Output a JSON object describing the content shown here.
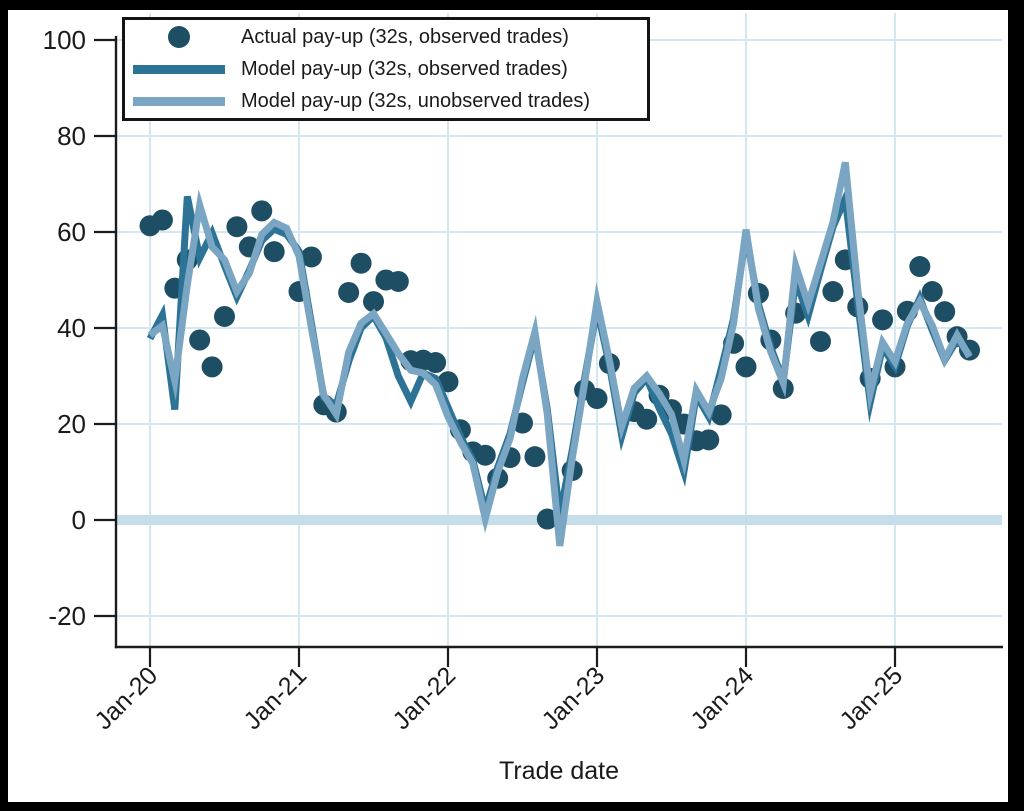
{
  "chart": {
    "x_axis_title": "Trade date",
    "y_tick_labels": [
      "100",
      "80",
      "60",
      "40",
      "20",
      "0",
      "-20"
    ],
    "y_tick_values": [
      100,
      80,
      60,
      40,
      20,
      0,
      -20
    ],
    "x_tick_labels": [
      "Jan-20",
      "Jan-21",
      "Jan-22",
      "Jan-23",
      "Jan-24",
      "Jan-25"
    ],
    "colors": {
      "actual_dot": "#1e4e63",
      "model_observed_line": "#2c7396",
      "model_unobserved_line": "#7aa6c3",
      "gridline": "#d5e8f2",
      "zero_band": "#c5dee9",
      "axis": "#1c1c1c",
      "text": "#1a1a1a",
      "frame": "#000000",
      "panel": "#ffffff"
    }
  },
  "legend": {
    "items": [
      {
        "marker": "dot",
        "color": "#1e4e63",
        "label": "Actual pay-up (32s, observed trades)"
      },
      {
        "marker": "line",
        "color": "#2c7396",
        "label": "Model pay-up (32s, observed trades)"
      },
      {
        "marker": "line",
        "color": "#7aa6c3",
        "label": "Model pay-up (32s, unobserved trades)"
      }
    ]
  },
  "chart_data": {
    "type": "line",
    "title": "",
    "xlabel": "Trade date",
    "ylabel": "",
    "ylim": [
      -20,
      100
    ],
    "y_gridlines": [
      100,
      80,
      60,
      40,
      20,
      -20
    ],
    "zero_reference_band": 0,
    "x_unit": "monthly trade dates",
    "x_tick_labels": [
      "Jan-20",
      "Jan-21",
      "Jan-22",
      "Jan-23",
      "Jan-24",
      "Jan-25"
    ],
    "legend_position": "top-left inside",
    "grid": true,
    "series": [
      {
        "name": "Actual pay-up (32s, observed trades)",
        "type": "scatter",
        "color": "#1e4e63",
        "points": [
          [
            "Jan-20",
            61.3
          ],
          [
            "Feb-20",
            62.5
          ],
          [
            "Mar-20",
            48.3
          ],
          [
            "Apr-20",
            54.2
          ],
          [
            "May-20",
            37.5
          ],
          [
            "Jun-20",
            31.9
          ],
          [
            "Jul-20",
            42.4
          ],
          [
            "Aug-20",
            61.1
          ],
          [
            "Sep-20",
            56.9
          ],
          [
            "Oct-20",
            64.4
          ],
          [
            "Nov-20",
            55.9
          ],
          [
            "Jan-21",
            47.6
          ],
          [
            "Feb-21",
            54.8
          ],
          [
            "Mar-21",
            24.0
          ],
          [
            "Apr-21",
            22.5
          ],
          [
            "May-21",
            47.4
          ],
          [
            "Jun-21",
            53.5
          ],
          [
            "Jul-21",
            45.5
          ],
          [
            "Aug-21",
            50.0
          ],
          [
            "Sep-21",
            49.7
          ],
          [
            "Oct-21",
            33.2
          ],
          [
            "Nov-21",
            33.3
          ],
          [
            "Dec-21",
            32.8
          ],
          [
            "Jan-22",
            28.8
          ],
          [
            "Feb-22",
            18.8
          ],
          [
            "Mar-22",
            14.2
          ],
          [
            "Apr-22",
            13.5
          ],
          [
            "May-22",
            8.7
          ],
          [
            "Jun-22",
            13.0
          ],
          [
            "Jul-22",
            20.2
          ],
          [
            "Aug-22",
            13.2
          ],
          [
            "Sep-22",
            0.2
          ],
          [
            "Nov-22",
            10.3
          ],
          [
            "Dec-22",
            27.1
          ],
          [
            "Jan-23",
            25.3
          ],
          [
            "Feb-23",
            32.6
          ],
          [
            "Apr-23",
            22.6
          ],
          [
            "May-23",
            21.0
          ],
          [
            "Jun-23",
            26.0
          ],
          [
            "Jul-23",
            23.0
          ],
          [
            "Aug-23",
            20.0
          ],
          [
            "Sep-23",
            16.5
          ],
          [
            "Oct-23",
            16.7
          ],
          [
            "Nov-23",
            21.9
          ],
          [
            "Dec-23",
            36.8
          ],
          [
            "Jan-24",
            31.9
          ],
          [
            "Feb-24",
            47.2
          ],
          [
            "Mar-24",
            37.5
          ],
          [
            "Apr-24",
            27.4
          ],
          [
            "May-24",
            43.1
          ],
          [
            "Jul-24",
            37.2
          ],
          [
            "Aug-24",
            47.6
          ],
          [
            "Sep-24",
            54.2
          ],
          [
            "Oct-24",
            44.4
          ],
          [
            "Nov-24",
            29.5
          ],
          [
            "Dec-24",
            41.7
          ],
          [
            "Jan-25",
            31.9
          ],
          [
            "Feb-25",
            43.5
          ],
          [
            "Mar-25",
            52.8
          ],
          [
            "Apr-25",
            47.6
          ],
          [
            "May-25",
            43.4
          ],
          [
            "Jun-25",
            38.2
          ],
          [
            "Jul-25",
            35.4
          ]
        ]
      },
      {
        "name": "Model pay-up (32s, observed trades)",
        "type": "line",
        "color": "#2c7396",
        "x_start": "Jan-20",
        "values": [
          37.8,
          42.7,
          23.0,
          67.4,
          54.6,
          59.8,
          53.0,
          46.5,
          52.0,
          58.2,
          60.6,
          59.5,
          56.0,
          41.0,
          25.5,
          24.0,
          33.0,
          40.0,
          42.5,
          38.0,
          30.0,
          24.7,
          30.6,
          29.5,
          23.5,
          17.4,
          12.5,
          2.0,
          11.0,
          18.0,
          28.5,
          38.5,
          23.0,
          1.0,
          14.5,
          29.5,
          44.0,
          32.3,
          17.5,
          26.5,
          29.5,
          23.3,
          18.0,
          10.0,
          26.0,
          21.5,
          31.5,
          42.0,
          59.5,
          45.0,
          36.0,
          29.0,
          50.0,
          42.5,
          52.0,
          61.0,
          67.0,
          45.0,
          24.5,
          36.0,
          32.0,
          40.5,
          46.2,
          39.5,
          33.3,
          37.5,
          34.5
        ]
      },
      {
        "name": "Model pay-up (32s, unobserved trades)",
        "type": "line",
        "color": "#7aa6c3",
        "x_start": "Jan-20",
        "values": [
          38.5,
          40.5,
          29.0,
          49.0,
          65.6,
          56.9,
          54.2,
          47.6,
          51.4,
          59.5,
          62.0,
          60.8,
          55.0,
          40.0,
          26.0,
          22.0,
          35.0,
          41.0,
          43.0,
          38.9,
          34.7,
          31.2,
          30.6,
          28.2,
          21.5,
          16.3,
          11.8,
          0.3,
          10.0,
          17.0,
          29.5,
          39.2,
          22.0,
          -5.4,
          12.8,
          28.5,
          45.5,
          33.3,
          19.5,
          27.5,
          30.0,
          26.4,
          22.0,
          12.5,
          27.0,
          22.5,
          29.5,
          41.0,
          60.5,
          44.0,
          35.0,
          28.5,
          53.0,
          45.0,
          53.5,
          62.0,
          74.5,
          48.0,
          26.5,
          37.0,
          33.0,
          41.0,
          45.5,
          40.5,
          33.5,
          38.5,
          34.0
        ]
      }
    ]
  }
}
